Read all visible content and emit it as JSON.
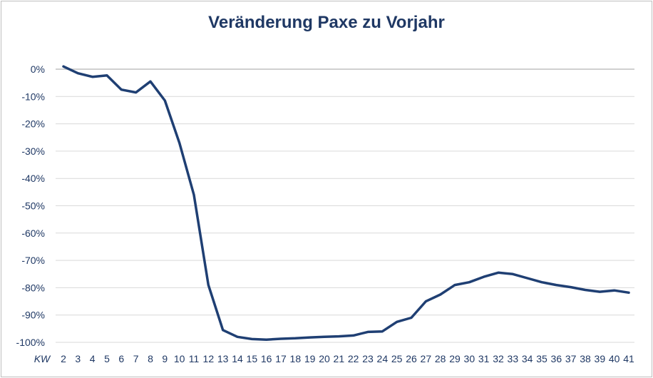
{
  "chart_data": {
    "type": "line",
    "title": "Veränderung Paxe zu Vorjahr",
    "xlabel": "KW",
    "ylabel": "",
    "ylim": [
      -100,
      0
    ],
    "yticks": [
      "0%",
      "-10%",
      "-20%",
      "-30%",
      "-40%",
      "-50%",
      "-60%",
      "-70%",
      "-80%",
      "-90%",
      "-100%"
    ],
    "ytick_values": [
      0,
      -10,
      -20,
      -30,
      -40,
      -50,
      -60,
      -70,
      -80,
      -90,
      -100
    ],
    "grid": true,
    "categories": [
      "2",
      "3",
      "4",
      "5",
      "6",
      "7",
      "8",
      "9",
      "10",
      "11",
      "12",
      "13",
      "14",
      "15",
      "16",
      "17",
      "18",
      "19",
      "20",
      "21",
      "22",
      "23",
      "24",
      "25",
      "26",
      "27",
      "28",
      "29",
      "30",
      "31",
      "32",
      "33",
      "34",
      "35",
      "36",
      "37",
      "38",
      "39",
      "40",
      "41"
    ],
    "series": [
      {
        "color": "#1f3f73",
        "values": [
          1,
          -1.5,
          -2.8,
          -2.3,
          -7.5,
          -8.5,
          -4.5,
          -11.5,
          -27,
          -46,
          -79,
          -95.5,
          -98,
          -98.8,
          -99,
          -98.7,
          -98.5,
          -98.2,
          -98,
          -97.8,
          -97.5,
          -96.2,
          -96,
          -92.5,
          -91,
          -85,
          -82.5,
          -79,
          -78,
          -76,
          -74.5,
          -75,
          -76.5,
          -78,
          -79,
          -79.8,
          -80.8,
          -81.5,
          -81,
          -81.8
        ]
      }
    ]
  }
}
